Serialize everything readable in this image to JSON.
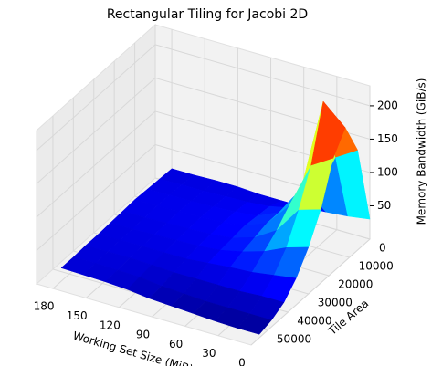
{
  "chart_data": {
    "type": "surface",
    "title": "Rectangular Tiling for Jacobi 2D",
    "xlabel": "Working Set Size (MiB)",
    "ylabel": "Tile Area",
    "zlabel": "Memory Bandwidth (GiB/s)",
    "x": [
      0,
      20,
      40,
      60,
      80,
      100,
      120,
      140,
      160,
      180
    ],
    "y": [
      0,
      6000,
      12000,
      18000,
      24000,
      30000,
      36000,
      42000,
      48000,
      54000
    ],
    "z": [
      [
        30,
        150,
        200,
        170,
        110,
        70,
        40,
        20,
        10,
        5
      ],
      [
        25,
        130,
        230,
        150,
        100,
        60,
        35,
        20,
        10,
        5
      ],
      [
        22,
        60,
        90,
        80,
        60,
        45,
        30,
        18,
        10,
        6
      ],
      [
        20,
        35,
        45,
        45,
        40,
        35,
        28,
        18,
        10,
        8
      ],
      [
        20,
        28,
        30,
        32,
        30,
        28,
        25,
        18,
        12,
        10
      ],
      [
        20,
        25,
        27,
        27,
        26,
        25,
        22,
        18,
        14,
        12
      ],
      [
        22,
        24,
        25,
        26,
        25,
        24,
        22,
        20,
        18,
        16
      ],
      [
        22,
        23,
        24,
        25,
        24,
        23,
        22,
        21,
        19,
        18
      ],
      [
        21,
        23,
        24,
        24,
        23,
        22,
        22,
        21,
        20,
        19
      ],
      [
        21,
        22,
        23,
        24,
        23,
        22,
        21,
        21,
        20,
        20
      ]
    ],
    "xlim": [
      0,
      195
    ],
    "ylim": [
      0,
      58000
    ],
    "zlim": [
      0,
      230
    ],
    "xticks": [
      0,
      30,
      60,
      90,
      120,
      150,
      180
    ],
    "yticks": [
      0,
      10000,
      20000,
      30000,
      40000,
      50000
    ],
    "zticks": [
      50,
      100,
      150,
      200
    ],
    "colormap": "jet",
    "grid": true
  }
}
